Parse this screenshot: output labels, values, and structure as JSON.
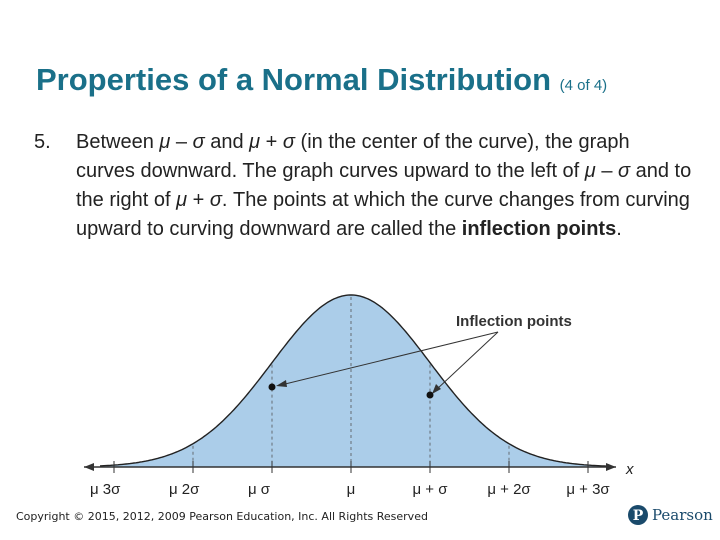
{
  "slide": {
    "title": "Properties of a Normal Distribution",
    "part": "(4 of 4)",
    "item_number": "5.",
    "paragraph": {
      "t1": "Between ",
      "mu": "μ",
      "minus": " – ",
      "sigma": "σ",
      "t2": " and ",
      "plus": " + ",
      "t3": " (in the center of the curve), the graph curves downward. The graph curves upward to the left of ",
      "t4": " and to the right of ",
      "t5": ". The points at which the curve changes from curving upward to curving downward are called the ",
      "bold": "inflection points",
      "end": "."
    }
  },
  "figure": {
    "annotation": "Inflection points",
    "axis_var": "x",
    "ticks": [
      "μ − 3σ",
      "μ − 2σ",
      "μ − σ",
      "μ",
      "μ + σ",
      "μ + 2σ",
      "μ + 3σ"
    ],
    "tick_labels": [
      {
        "a": "μ",
        "b": "3σ"
      },
      {
        "a": "μ",
        "b": "2σ"
      },
      {
        "a": "μ",
        "b": "σ"
      },
      {
        "a": "μ",
        "b": ""
      },
      {
        "a": "μ + σ",
        "b": ""
      },
      {
        "a": "μ + 2σ",
        "b": ""
      },
      {
        "a": "μ + 3σ",
        "b": ""
      }
    ],
    "fill_color": "#abcde9",
    "curve_color": "#222222"
  },
  "footer": {
    "copyright": "Copyright © 2015, 2012, 2009 Pearson Education, Inc. All Rights Reserved",
    "brand": "Pearson",
    "brand_color": "#1a4a6b"
  }
}
